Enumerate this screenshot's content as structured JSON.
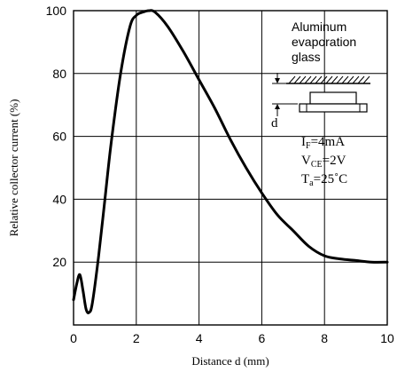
{
  "chart_data": {
    "type": "line",
    "xlabel": "Distance d (mm)",
    "ylabel": "Relative collector current (%)",
    "xlim": [
      0,
      10
    ],
    "ylim": [
      0,
      100
    ],
    "x_ticks": [
      "0",
      "2",
      "4",
      "6",
      "8",
      "10"
    ],
    "y_ticks": [
      "20",
      "40",
      "60",
      "80",
      "100"
    ],
    "grid": true,
    "series": [
      {
        "x": [
          0,
          0.1,
          0.2,
          0.3,
          0.4,
          0.5,
          0.6,
          0.8,
          1.0,
          1.2,
          1.5,
          1.8,
          2.0,
          2.2,
          2.4,
          2.6,
          3.0,
          3.5,
          4.0,
          4.5,
          5.0,
          5.5,
          6.0,
          6.5,
          7.0,
          7.5,
          8.0,
          8.5,
          9.0,
          9.5,
          10.0
        ],
        "y": [
          8,
          13,
          16,
          11,
          5,
          4,
          7,
          22,
          40,
          58,
          80,
          95,
          98.5,
          99.5,
          100,
          99.5,
          95,
          87,
          78,
          69,
          59,
          50,
          42,
          35,
          30,
          25,
          22,
          21,
          20.5,
          20,
          20
        ]
      }
    ],
    "annotation": {
      "material_lines": [
        "Aluminum",
        "evaporation",
        "glass"
      ],
      "distance_symbol": "d",
      "conditions": [
        {
          "main": "I",
          "sub": "F",
          "rest": "=4mA"
        },
        {
          "main": "V",
          "sub": "CE",
          "rest": "=2V"
        },
        {
          "main": "T",
          "sub": "a",
          "rest": "=25˚C"
        }
      ]
    }
  }
}
